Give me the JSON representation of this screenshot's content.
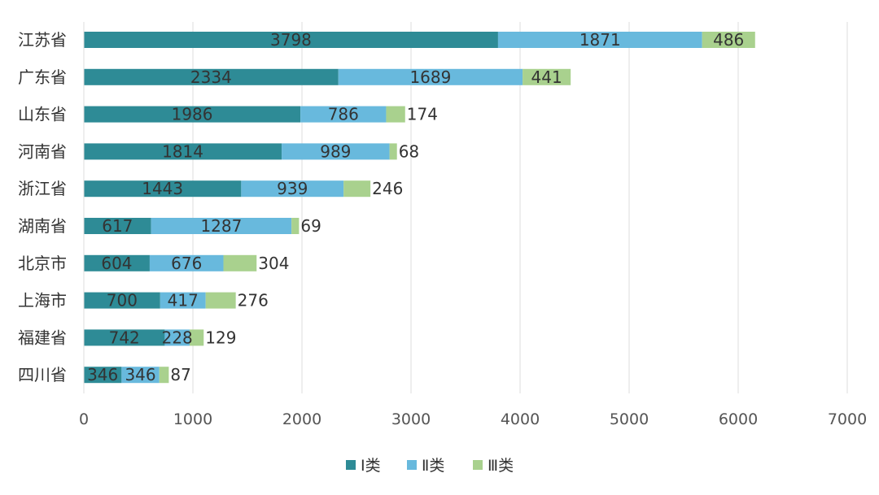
{
  "chart_data": {
    "type": "bar",
    "orientation": "horizontal",
    "stacked": true,
    "title": "",
    "xlabel": "",
    "ylabel": "",
    "xlim": [
      0,
      7000
    ],
    "xticks": [
      0,
      1000,
      2000,
      3000,
      4000,
      5000,
      6000,
      7000
    ],
    "grid": true,
    "legend_position": "bottom",
    "categories": [
      "江苏省",
      "广东省",
      "山东省",
      "河南省",
      "浙江省",
      "湖南省",
      "北京市",
      "上海市",
      "福建省",
      "四川省"
    ],
    "series": [
      {
        "name": "Ⅰ类",
        "color": "#2e8b96",
        "values": [
          3798,
          2334,
          1986,
          1814,
          1443,
          617,
          604,
          700,
          742,
          346
        ]
      },
      {
        "name": "Ⅱ类",
        "color": "#68b9dd",
        "values": [
          1871,
          1689,
          786,
          989,
          939,
          1287,
          676,
          417,
          228,
          346
        ]
      },
      {
        "name": "Ⅲ类",
        "color": "#a9d18e",
        "values": [
          486,
          441,
          174,
          68,
          246,
          69,
          304,
          276,
          129,
          87
        ]
      }
    ]
  }
}
